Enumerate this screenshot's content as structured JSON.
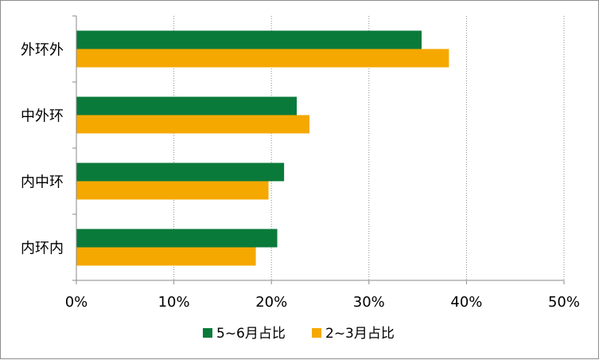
{
  "chart_data": {
    "type": "bar",
    "orientation": "horizontal",
    "categories": [
      "外环外",
      "中外环",
      "内中环",
      "内环内"
    ],
    "series": [
      {
        "name": "5~6月占比",
        "color": "#0a7a3a",
        "values": [
          35.4,
          22.6,
          21.3,
          20.6
        ]
      },
      {
        "name": "2~3月占比",
        "color": "#f5a800",
        "values": [
          38.2,
          23.9,
          19.7,
          18.4
        ]
      }
    ],
    "x_ticks": [
      "0%",
      "10%",
      "20%",
      "30%",
      "40%",
      "50%"
    ],
    "xlim": [
      0,
      50
    ],
    "x_unit": "percent",
    "grid": "vertical-dotted",
    "legend_position": "bottom"
  }
}
